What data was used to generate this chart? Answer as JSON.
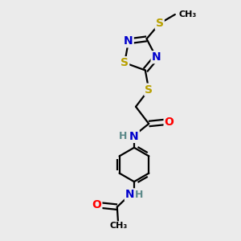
{
  "background_color": "#ebebeb",
  "atom_colors": {
    "C": "#000000",
    "N": "#0000cc",
    "O": "#ff0000",
    "S": "#b8a000",
    "H": "#5c8a8a"
  },
  "bond_color": "#000000",
  "line_width": 1.6,
  "font_size_atoms": 10,
  "font_size_small": 9
}
